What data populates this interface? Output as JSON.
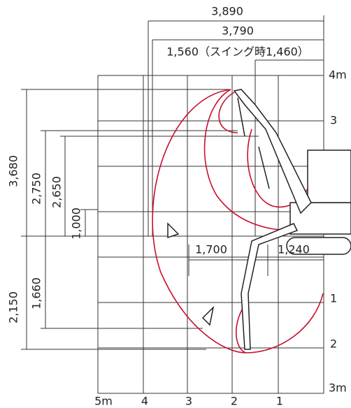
{
  "top_dimensions": [
    "3,890",
    "3,790",
    "1,560（スイング時1,460）"
  ],
  "left_dimensions_above": [
    "3,680",
    "2,750",
    "2,650",
    "1,000"
  ],
  "left_dimensions_below": [
    "2,150",
    "1,660"
  ],
  "reach_dimensions": [
    "1,700",
    "1,240"
  ],
  "horizontal_scale": [
    "5m",
    "4",
    "3",
    "2",
    "1"
  ],
  "vertical_scale": [
    "4m",
    "3",
    "1",
    "2",
    "3m"
  ]
}
